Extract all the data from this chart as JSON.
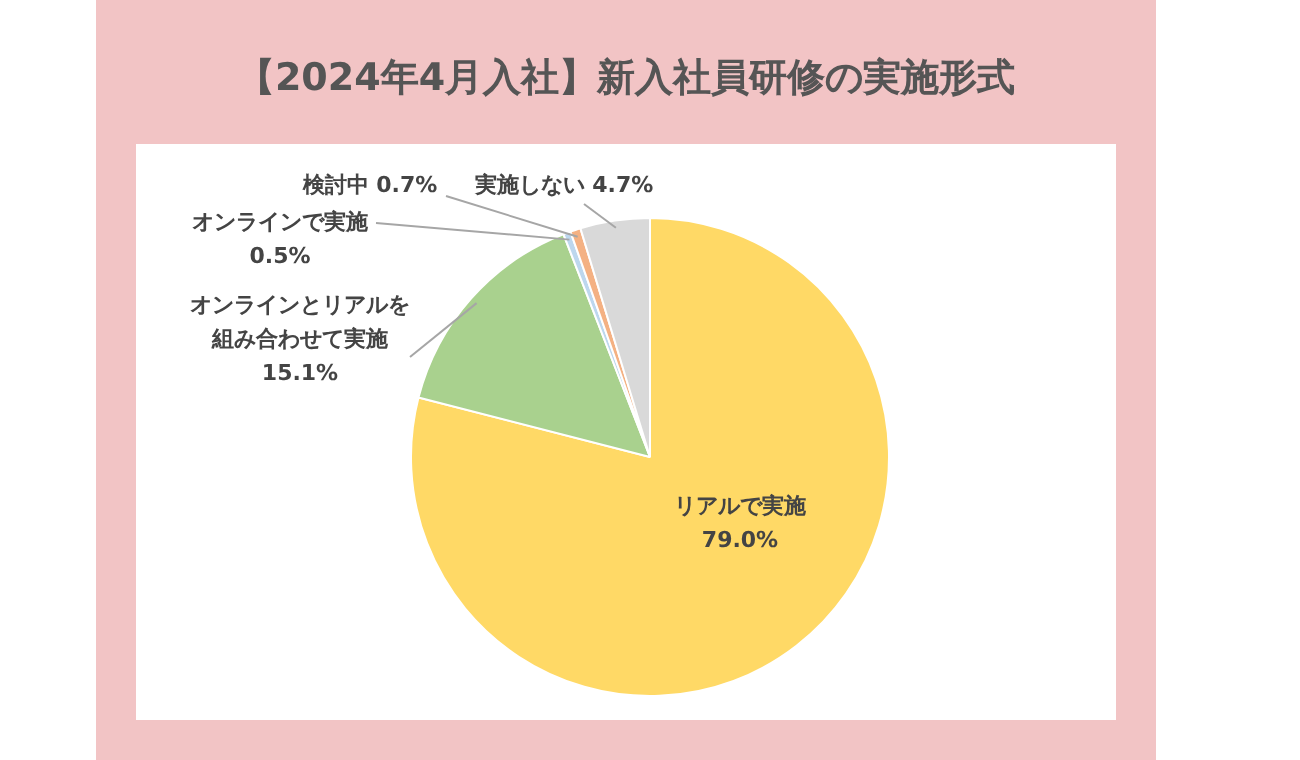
{
  "chart_data": {
    "type": "pie",
    "title": "【2024年4月入社】新入社員研修の実施形式",
    "categories": [
      "リアルで実施",
      "オンラインとリアルを組み合わせて実施",
      "オンラインで実施",
      "検討中",
      "実施しない"
    ],
    "values": [
      79.0,
      15.1,
      0.5,
      0.7,
      4.7
    ],
    "colors": [
      "#ffd966",
      "#a9d18e",
      "#bdd7ee",
      "#f4b183",
      "#d9d9d9"
    ],
    "value_labels": [
      "79.0%",
      "15.1%",
      "0.5%",
      "0.7%",
      "4.7%"
    ]
  }
}
